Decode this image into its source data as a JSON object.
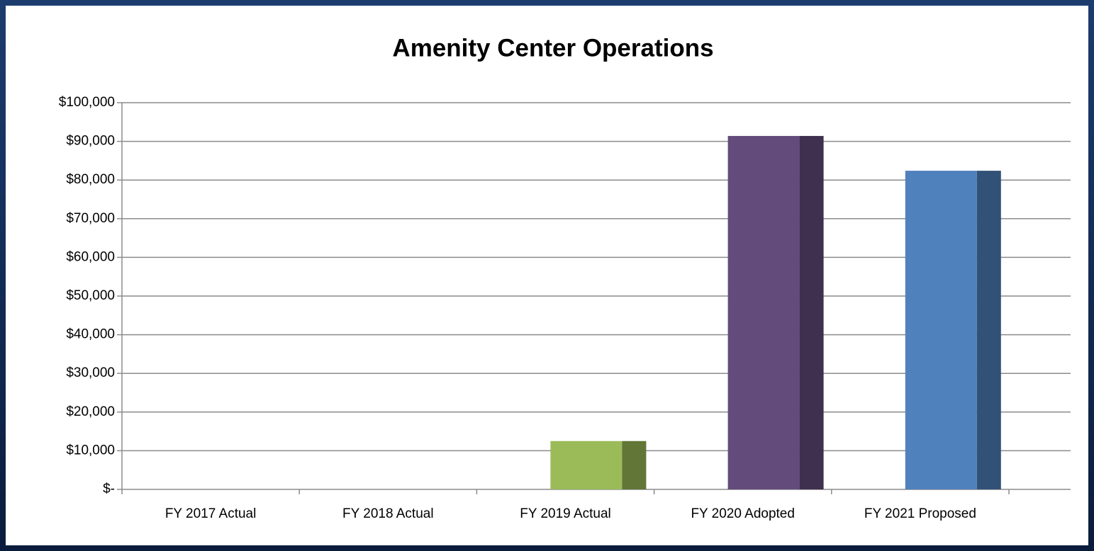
{
  "chart_data": {
    "type": "bar",
    "title": "Amenity Center Operations",
    "categories": [
      "FY 2017 Actual",
      "FY 2018 Actual",
      "FY 2019 Actual",
      "FY 2020 Adopted",
      "FY 2021 Proposed"
    ],
    "values": [
      0,
      0,
      12500,
      91400,
      82400
    ],
    "colors": [
      null,
      null,
      "#9bbb59",
      "#634c7c",
      "#4f81bd"
    ],
    "ylim": [
      0,
      100000
    ],
    "yticks": [
      {
        "value": 0,
        "label": "$-"
      },
      {
        "value": 10000,
        "label": "$10,000"
      },
      {
        "value": 20000,
        "label": "$20,000"
      },
      {
        "value": 30000,
        "label": "$30,000"
      },
      {
        "value": 40000,
        "label": "$40,000"
      },
      {
        "value": 50000,
        "label": "$50,000"
      },
      {
        "value": 60000,
        "label": "$60,000"
      },
      {
        "value": 70000,
        "label": "$70,000"
      },
      {
        "value": 80000,
        "label": "$80,000"
      },
      {
        "value": 90000,
        "label": "$90,000"
      },
      {
        "value": 100000,
        "label": "$100,000"
      }
    ],
    "grid": true
  }
}
